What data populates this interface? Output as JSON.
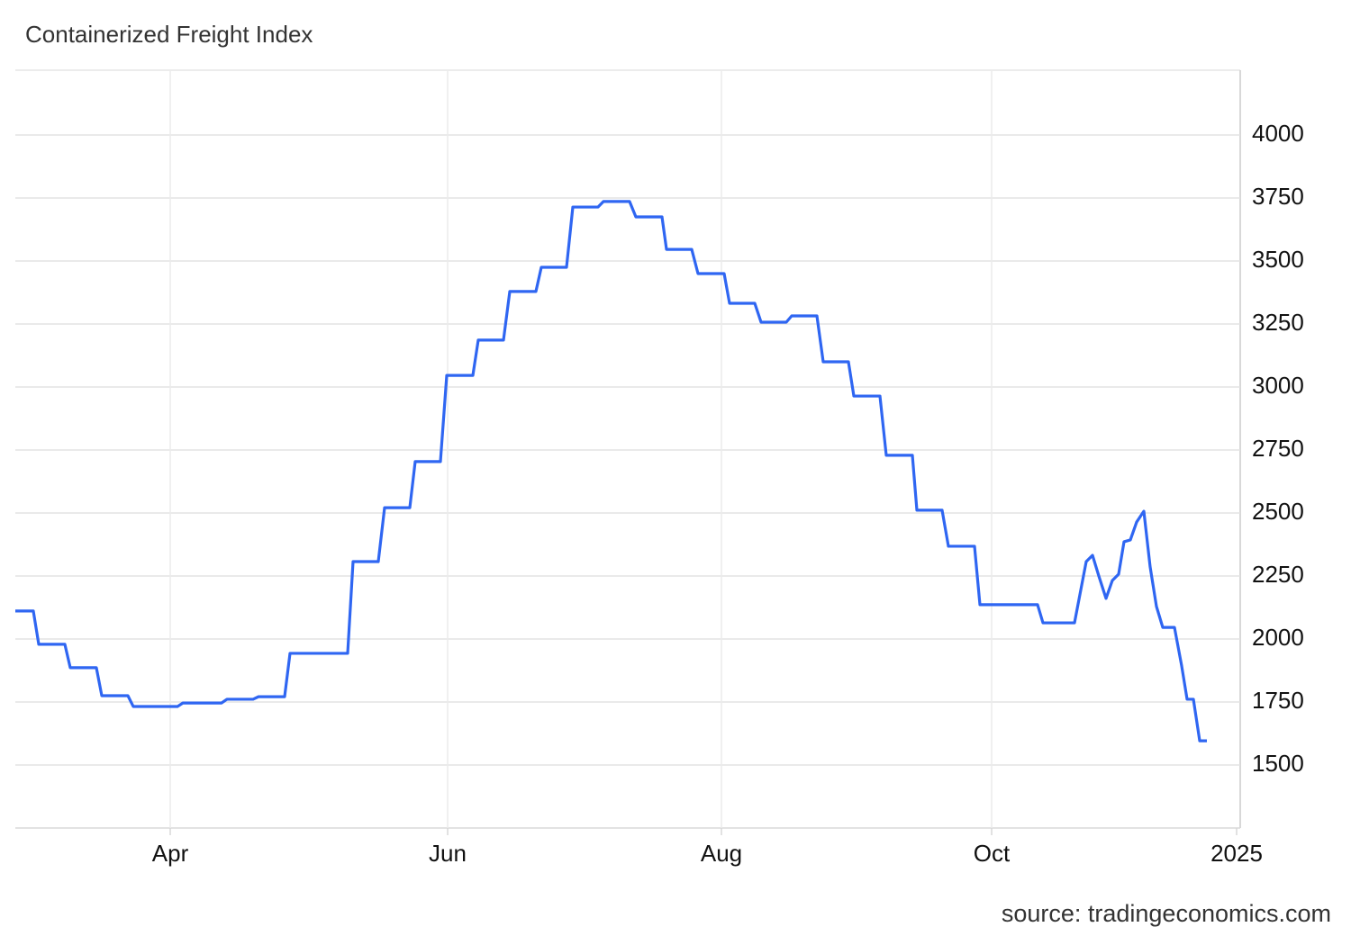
{
  "chart_data": {
    "type": "line",
    "title": "Containerized Freight Index",
    "source": "source: tradingeconomics.com",
    "x": [
      0,
      4,
      5.2,
      11,
      12.2,
      18,
      19.2,
      25,
      26.2,
      32,
      36,
      37.2,
      45.8,
      47,
      52.8,
      54,
      59.8,
      61,
      73.8,
      75,
      80.6,
      82,
      87.6,
      88.8,
      94.4,
      95.8,
      101.6,
      102.8,
      108.4,
      109.8,
      115.6,
      116.8,
      122.4,
      123.8,
      129.4,
      130.6,
      136.4,
      137.8,
      143.6,
      144.6,
      150.2,
      151.6,
      157.4,
      158.6,
      164.2,
      165.6,
      171.2,
      172.4,
      178,
      179.4,
      185,
      186.2,
      192,
      193.4,
      199.2,
      200.2,
      205.8,
      207.2,
      213,
      214.2,
      227,
      228.2,
      235.2,
      237.8,
      239.2,
      240.6,
      242.2,
      243.6,
      245,
      246.2,
      247.6,
      249,
      250.6,
      252,
      253.4,
      254.8,
      257.4,
      259,
      260.2,
      261.6,
      263,
      264.6
    ],
    "series": [
      {
        "name": "Containerized Freight Index",
        "color": "#2f66f2",
        "values": [
          2111,
          2111,
          1979,
          1979,
          1886,
          1886,
          1775,
          1775,
          1732,
          1732,
          1732,
          1746,
          1746,
          1761,
          1761,
          1771,
          1771,
          1943,
          1943,
          2307,
          2307,
          2521,
          2521,
          2704,
          2704,
          3046,
          3046,
          3186,
          3186,
          3379,
          3379,
          3475,
          3475,
          3714,
          3714,
          3736,
          3736,
          3675,
          3675,
          3546,
          3546,
          3450,
          3450,
          3332,
          3332,
          3257,
          3257,
          3282,
          3282,
          3100,
          3100,
          2964,
          2964,
          2729,
          2729,
          2511,
          2511,
          2368,
          2368,
          2136,
          2136,
          2064,
          2064,
          2307,
          2332,
          2250,
          2161,
          2232,
          2257,
          2386,
          2393,
          2464,
          2507,
          2286,
          2129,
          2046,
          2046,
          1893,
          1761,
          1761,
          1596,
          1596
        ]
      }
    ],
    "xlim": [
      0,
      271.6
    ],
    "xticks": [
      {
        "value": 34.4,
        "label": "Apr"
      },
      {
        "value": 96,
        "label": "Jun"
      },
      {
        "value": 156.8,
        "label": "Aug"
      },
      {
        "value": 216.8,
        "label": "Oct"
      },
      {
        "value": 271.2,
        "label": "2025"
      }
    ],
    "ylim": [
      1250,
      4257
    ],
    "yticks": [
      1500,
      1750,
      2000,
      2250,
      2500,
      2750,
      3000,
      3250,
      3500,
      3750,
      4000
    ],
    "grid": true
  }
}
